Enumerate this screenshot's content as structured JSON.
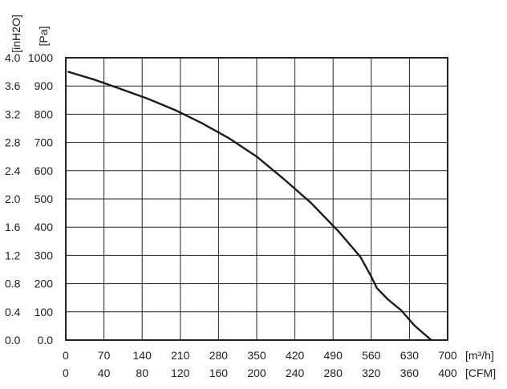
{
  "chart_data": {
    "type": "line",
    "title": "",
    "grid": true,
    "x_axis_primary": {
      "unit": "[m³/h]",
      "range": [
        0,
        700
      ],
      "ticks": [
        "0",
        "70",
        "140",
        "210",
        "280",
        "350",
        "420",
        "490",
        "560",
        "630",
        "700"
      ]
    },
    "x_axis_secondary": {
      "unit": "[CFM]",
      "ticks": [
        "0",
        "40",
        "80",
        "120",
        "160",
        "200",
        "240",
        "280",
        "320",
        "360",
        "400"
      ]
    },
    "y_axis_primary": {
      "unit": "[Pa]",
      "range": [
        0,
        1000
      ],
      "ticks": [
        "0.0",
        "100",
        "200",
        "300",
        "400",
        "500",
        "600",
        "700",
        "800",
        "900",
        "1000"
      ]
    },
    "y_axis_secondary": {
      "unit": "[inH2O]",
      "ticks": [
        "0.0",
        "0.4",
        "0.8",
        "1.2",
        "1.6",
        "2.0",
        "2.4",
        "2.8",
        "3.2",
        "3.6",
        "4.0"
      ]
    },
    "series": [
      {
        "x": [
          5,
          50,
          100,
          150,
          200,
          250,
          300,
          350,
          400,
          450,
          500,
          540,
          560,
          570,
          590,
          615,
          640,
          670
        ],
        "y": [
          950,
          924,
          890,
          855,
          815,
          768,
          714,
          650,
          570,
          485,
          385,
          295,
          225,
          185,
          145,
          105,
          50,
          0
        ]
      }
    ],
    "colors": {
      "line": "#1a1a1a",
      "grid": "#222222"
    }
  }
}
